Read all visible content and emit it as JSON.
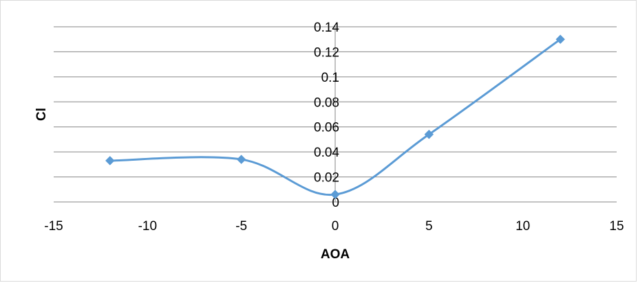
{
  "chart_data": {
    "type": "scatter",
    "title": "",
    "xlabel": "AOA",
    "ylabel": "Cl",
    "xlim": [
      -15,
      15
    ],
    "ylim": [
      0,
      0.14
    ],
    "x_ticks": [
      -15,
      -10,
      -5,
      0,
      5,
      10,
      15
    ],
    "y_ticks": [
      0,
      0.02,
      0.04,
      0.06,
      0.08,
      0.1,
      0.12,
      0.14
    ],
    "x_tick_labels": [
      "-15",
      "-10",
      "-5",
      "0",
      "5",
      "10",
      "15"
    ],
    "y_tick_labels": [
      "0",
      "0.02",
      "0.04",
      "0.06",
      "0.08",
      "0.1",
      "0.12",
      "0.14"
    ],
    "grid": "horizontal",
    "legend": "none",
    "line_style": "smooth",
    "marker": "diamond",
    "series": [
      {
        "color": "#5b9bd5",
        "x": [
          -12,
          -5,
          0,
          5,
          12
        ],
        "y": [
          0.033,
          0.034,
          0.006,
          0.054,
          0.13
        ]
      }
    ]
  }
}
